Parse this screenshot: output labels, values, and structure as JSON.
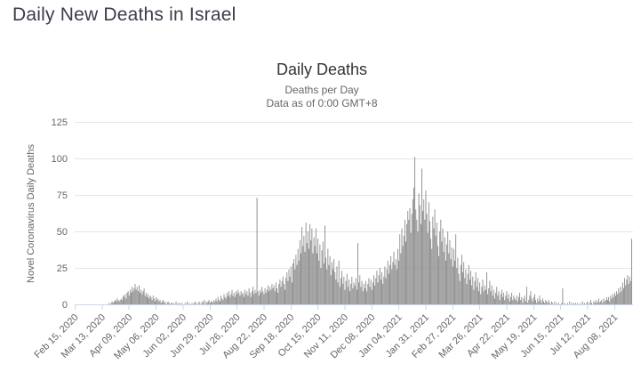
{
  "page": {
    "title": "Daily New Deaths in Israel"
  },
  "chart": {
    "title": "Daily Deaths",
    "subtitle_line1": "Deaths per Day",
    "subtitle_line2": "Data as of 0:00 GMT+8",
    "y_axis_title": "Novel Coronavirus Daily Deaths",
    "colors": {
      "page_title": "#3c3c4b",
      "title": "#333333",
      "subtitle": "#666666",
      "axis_label": "#666666",
      "grid": "#e6e6e6",
      "axis_line": "#ccd6eb",
      "bar": "#8a8a8a"
    }
  },
  "chart_data": {
    "type": "bar",
    "title": "Daily Deaths",
    "subtitle": [
      "Deaths per Day",
      "Data as of 0:00 GMT+8"
    ],
    "xlabel": "",
    "ylabel": "Novel Coronavirus Daily Deaths",
    "ylim": [
      0,
      125
    ],
    "y_ticks": [
      0,
      25,
      50,
      75,
      100,
      125
    ],
    "grid": true,
    "legend": false,
    "series_name": "Daily Deaths",
    "frequency": "daily",
    "start_date": "2020-02-15",
    "end_date": "2021-08-25",
    "x_tick_interval_days": 27,
    "x_tick_labels": [
      "Feb 15, 2020",
      "Mar 13, 2020",
      "Apr 09, 2020",
      "May 06, 2020",
      "Jun 02, 2020",
      "Jun 29, 2020",
      "Jul 26, 2020",
      "Aug 22, 2020",
      "Sep 18, 2020",
      "Oct 15, 2020",
      "Nov 11, 2020",
      "Dec 08, 2020",
      "Jan 04, 2021",
      "Jan 31, 2021",
      "Feb 27, 2021",
      "Mar 26, 2021",
      "Apr 22, 2021",
      "May 19, 2021",
      "Jun 15, 2021",
      "Jul 12, 2021",
      "Aug 08, 2021"
    ],
    "values": [
      0,
      0,
      0,
      0,
      0,
      0,
      0,
      0,
      0,
      0,
      0,
      0,
      0,
      0,
      0,
      0,
      0,
      0,
      0,
      0,
      0,
      0,
      0,
      0,
      0,
      0,
      0,
      0,
      0,
      0,
      0,
      0,
      0,
      0,
      1,
      0,
      1,
      2,
      1,
      2,
      3,
      2,
      4,
      3,
      2,
      3,
      4,
      3,
      6,
      5,
      7,
      4,
      8,
      9,
      6,
      10,
      8,
      12,
      9,
      11,
      14,
      10,
      12,
      9,
      13,
      8,
      10,
      7,
      9,
      11,
      6,
      8,
      5,
      7,
      4,
      6,
      5,
      3,
      6,
      4,
      2,
      5,
      3,
      4,
      2,
      3,
      1,
      2,
      3,
      1,
      2,
      0,
      1,
      2,
      1,
      0,
      1,
      1,
      0,
      1,
      0,
      2,
      0,
      1,
      0,
      1,
      0,
      1,
      0,
      0,
      1,
      0,
      2,
      0,
      1,
      0,
      0,
      1,
      0,
      1,
      2,
      0,
      1,
      0,
      2,
      1,
      0,
      2,
      1,
      3,
      0,
      2,
      1,
      2,
      3,
      1,
      2,
      2,
      1,
      3,
      2,
      4,
      2,
      5,
      3,
      2,
      6,
      4,
      3,
      7,
      5,
      4,
      8,
      6,
      9,
      5,
      7,
      10,
      6,
      8,
      5,
      9,
      7,
      10,
      8,
      6,
      9,
      7,
      8,
      5,
      10,
      7,
      9,
      6,
      11,
      8,
      5,
      9,
      12,
      7,
      10,
      8,
      73,
      9,
      6,
      10,
      8,
      12,
      9,
      7,
      11,
      8,
      10,
      13,
      9,
      12,
      10,
      14,
      11,
      13,
      9,
      15,
      11,
      8,
      14,
      17,
      12,
      16,
      19,
      14,
      10,
      18,
      22,
      16,
      24,
      19,
      26,
      15,
      28,
      31,
      24,
      34,
      27,
      38,
      30,
      44,
      35,
      53,
      40,
      47,
      36,
      56,
      42,
      50,
      38,
      55,
      44,
      52,
      35,
      46,
      40,
      52,
      35,
      45,
      30,
      41,
      25,
      37,
      43,
      28,
      54,
      32,
      24,
      38,
      27,
      33,
      20,
      29,
      24,
      31,
      22,
      17,
      26,
      15,
      30,
      12,
      18,
      23,
      14,
      19,
      10,
      16,
      21,
      12,
      17,
      9,
      14,
      19,
      11,
      15,
      13,
      18,
      10,
      42,
      15,
      20,
      12,
      16,
      9,
      14,
      11,
      16,
      9,
      14,
      18,
      12,
      17,
      10,
      15,
      20,
      13,
      18,
      23,
      15,
      20,
      25,
      17,
      22,
      14,
      19,
      26,
      18,
      24,
      30,
      21,
      27,
      33,
      24,
      29,
      36,
      27,
      31,
      24,
      38,
      30,
      48,
      35,
      52,
      40,
      47,
      58,
      43,
      55,
      64,
      58,
      66,
      49,
      62,
      72,
      80,
      101,
      65,
      58,
      50,
      76,
      68,
      55,
      93,
      64,
      72,
      58,
      78,
      62,
      49,
      70,
      57,
      45,
      38,
      60,
      52,
      65,
      47,
      56,
      40,
      33,
      50,
      58,
      43,
      52,
      36,
      46,
      30,
      41,
      50,
      35,
      44,
      31,
      39,
      26,
      38,
      30,
      48,
      25,
      32,
      21,
      16,
      27,
      34,
      22,
      29,
      18,
      24,
      14,
      21,
      27,
      17,
      23,
      13,
      19,
      10,
      16,
      22,
      12,
      18,
      9,
      15,
      7,
      12,
      17,
      9,
      13,
      10,
      22,
      7,
      11,
      16,
      9,
      13,
      6,
      10,
      4,
      8,
      12,
      6,
      9,
      3,
      7,
      10,
      5,
      8,
      3,
      6,
      9,
      4,
      7,
      2,
      5,
      8,
      3,
      6,
      4,
      3,
      6,
      2,
      5,
      8,
      3,
      5,
      1,
      4,
      6,
      2,
      12,
      1,
      3,
      6,
      9,
      4,
      2,
      5,
      7,
      3,
      1,
      4,
      2,
      6,
      3,
      1,
      4,
      2,
      1,
      3,
      2,
      1,
      3,
      1,
      0,
      2,
      1,
      0,
      2,
      0,
      1,
      0,
      1,
      0,
      0,
      1,
      11,
      0,
      1,
      0,
      0,
      1,
      0,
      2,
      0,
      1,
      0,
      1,
      0,
      1,
      0,
      1,
      0,
      0,
      1,
      0,
      2,
      0,
      1,
      0,
      1,
      2,
      0,
      1,
      3,
      1,
      0,
      2,
      1,
      3,
      1,
      2,
      4,
      1,
      2,
      3,
      1,
      4,
      2,
      3,
      5,
      3,
      5,
      2,
      6,
      4,
      7,
      5,
      8,
      6,
      9,
      7,
      11,
      8,
      12,
      9,
      15,
      11,
      18,
      13,
      17,
      20,
      14,
      19,
      16,
      45
    ]
  }
}
